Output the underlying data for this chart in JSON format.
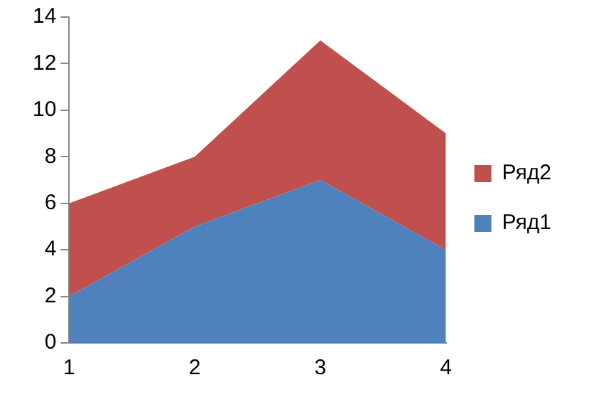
{
  "chart_data": {
    "type": "area",
    "stacked": true,
    "categories": [
      "1",
      "2",
      "3",
      "4"
    ],
    "series": [
      {
        "name": "Ряд1",
        "color": "#4f81bd",
        "values": [
          2,
          5,
          7,
          4
        ]
      },
      {
        "name": "Ряд2",
        "color": "#c0504d",
        "values": [
          4,
          3,
          6,
          5
        ]
      }
    ],
    "ylim": [
      0,
      14
    ],
    "yticks": [
      0,
      2,
      4,
      6,
      8,
      10,
      12,
      14
    ],
    "grid": false,
    "legend": "right"
  }
}
